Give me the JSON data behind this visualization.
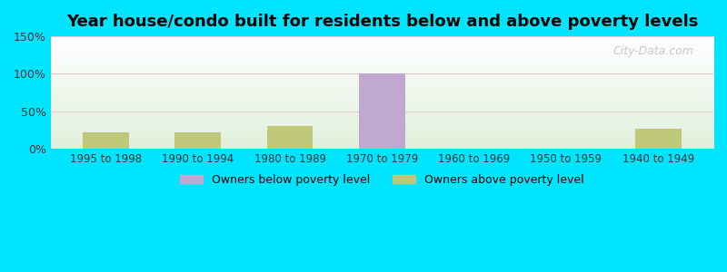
{
  "title": "Year house/condo built for residents below and above poverty levels",
  "categories": [
    "1995 to 1998",
    "1990 to 1994",
    "1980 to 1989",
    "1970 to 1979",
    "1960 to 1969",
    "1950 to 1959",
    "1940 to 1949"
  ],
  "below_poverty": [
    0,
    0,
    0,
    100,
    0,
    0,
    0
  ],
  "above_poverty": [
    22,
    22,
    30,
    0,
    0,
    0,
    27
  ],
  "below_color": "#c0a8d0",
  "above_color": "#bec878",
  "ylim": [
    0,
    150
  ],
  "yticks": [
    0,
    50,
    100,
    150
  ],
  "ytick_labels": [
    "0%",
    "50%",
    "100%",
    "150%"
  ],
  "outer_bg_color": "#00e5ff",
  "legend_below_label": "Owners below poverty level",
  "legend_above_label": "Owners above poverty level",
  "bar_width": 0.5,
  "title_fontsize": 13
}
